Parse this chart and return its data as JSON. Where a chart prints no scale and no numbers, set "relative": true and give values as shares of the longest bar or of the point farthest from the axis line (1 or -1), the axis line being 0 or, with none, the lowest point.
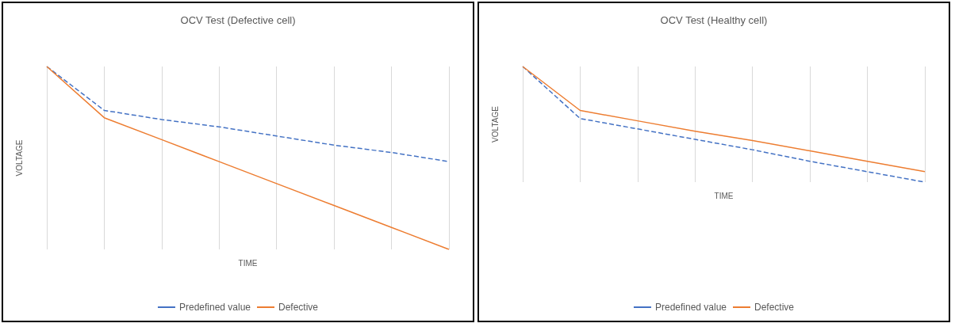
{
  "chart_data": [
    {
      "type": "line",
      "title": "OCV Test (Defective cell)",
      "xlabel": "TIME",
      "ylabel": "VOLTAGE",
      "relative": true,
      "grid": "x",
      "legend": "bottom",
      "marker": "none",
      "categories": [
        null,
        null,
        null,
        null,
        null,
        null,
        null,
        null
      ],
      "series": [
        {
          "name": "Predefined value",
          "color": "#4472c4",
          "line_style": "dashed",
          "values": [
            1,
            0.76,
            0.71,
            0.67,
            0.62,
            0.57,
            0.53,
            0.48
          ]
        },
        {
          "name": "Defective",
          "color": "#ed7d31",
          "line_style": "solid",
          "values": [
            1,
            0.72,
            0.6,
            0.48,
            0.36,
            0.24,
            0.12,
            0
          ]
        }
      ]
    },
    {
      "type": "line",
      "title": "OCV Test (Healthy cell)",
      "xlabel": "TIME",
      "ylabel": "VOLTAGE",
      "relative": true,
      "grid": "x",
      "legend": "bottom",
      "marker": "none",
      "categories": [
        null,
        null,
        null,
        null,
        null,
        null,
        null,
        null
      ],
      "series": [
        {
          "name": "Predefined value",
          "color": "#4472c4",
          "line_style": "dashed",
          "values": [
            1,
            0.55,
            0.46,
            0.37,
            0.28,
            0.18,
            0.09,
            0
          ]
        },
        {
          "name": "Defective",
          "color": "#ed7d31",
          "line_style": "solid",
          "values": [
            1,
            0.62,
            0.53,
            0.44,
            0.36,
            0.27,
            0.18,
            0.09
          ]
        }
      ]
    }
  ]
}
